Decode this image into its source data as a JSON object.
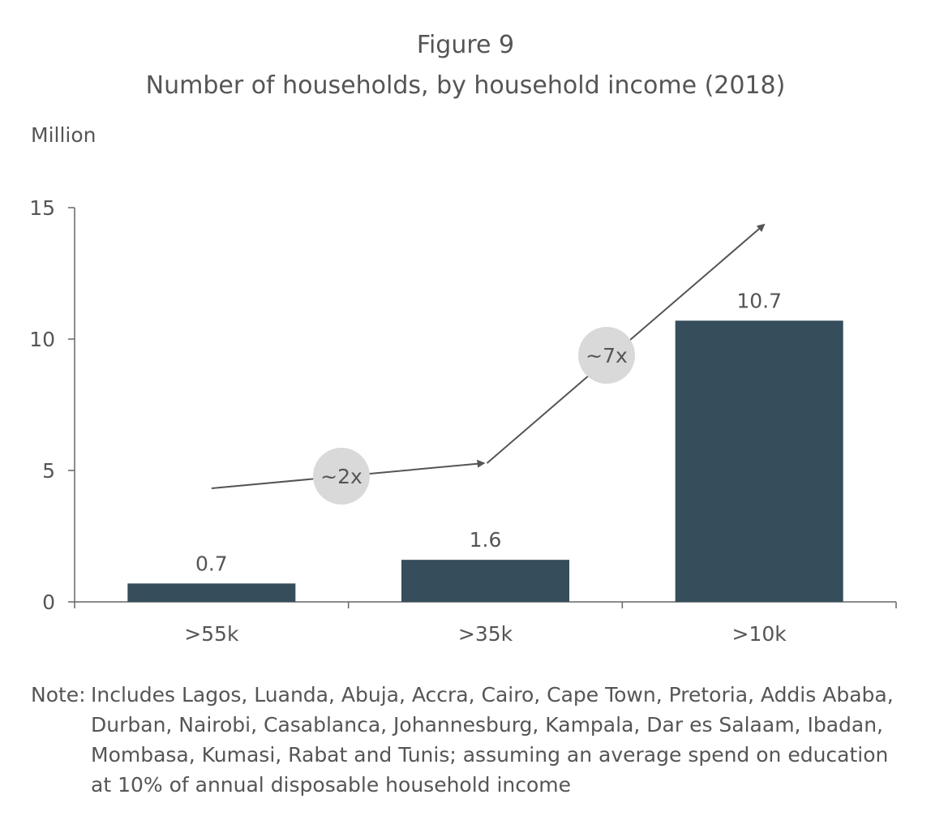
{
  "figure_label": "Figure 9",
  "unit_label": "Million",
  "note": {
    "prefix": "Note:",
    "text": "Includes Lagos, Luanda, Abuja, Accra, Cairo, Cape Town, Pretoria, Addis Ababa, Durban, Nairobi, Casablanca, Johannesburg, Kampala, Dar es Salaam, Ibadan, Mombasa, Kumasi, Rabat and Tunis; assuming an average spend on education at 10% of annual disposable household income"
  },
  "colors": {
    "bar": "#364d5c",
    "axis": "#666666",
    "text": "#555555",
    "bubble": "#d9d9d9",
    "arrow": "#555555"
  },
  "chart_data": {
    "type": "bar",
    "title": "Number of households, by household income (2018)",
    "ylabel": "Million",
    "categories": [
      ">55k",
      ">35k",
      ">10k"
    ],
    "values": [
      0.7,
      1.6,
      10.7
    ],
    "ylim": [
      0,
      15
    ],
    "yticks": [
      0,
      5,
      10,
      15
    ],
    "grid": false,
    "annotations": [
      {
        "text": "~2x",
        "between": [
          ">55k",
          ">35k"
        ]
      },
      {
        "text": "~7x",
        "between": [
          ">35k",
          ">10k"
        ]
      }
    ]
  }
}
